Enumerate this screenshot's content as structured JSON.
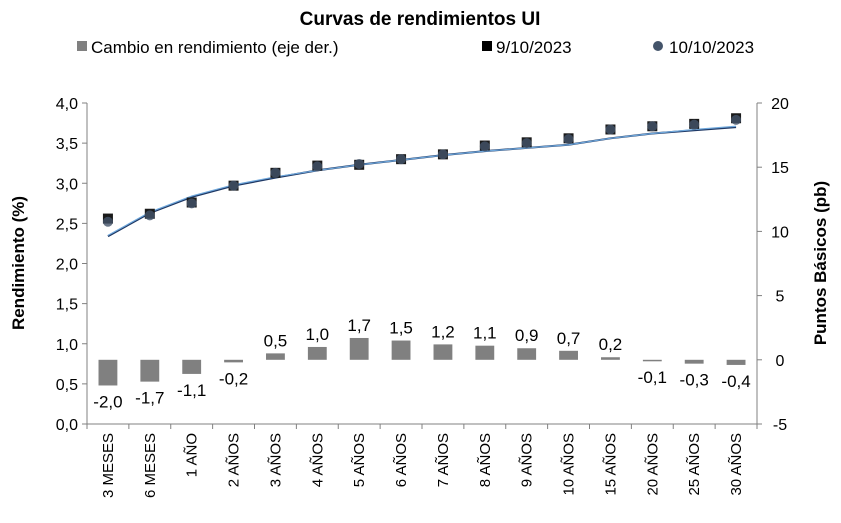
{
  "chart_data": {
    "type": "bar",
    "title": "Curvas de rendimientos UI",
    "legend": {
      "placement": "top",
      "items": [
        {
          "label": "Cambio en rendimiento (eje der.)",
          "marker": "square",
          "color": "#808080"
        },
        {
          "label": "9/10/2023",
          "marker": "square",
          "color": "#000000"
        },
        {
          "label": "10/10/2023",
          "marker": "circle",
          "color": "#44546a"
        }
      ]
    },
    "categories": [
      "3 MESES",
      "6 MESES",
      "1 AÑO",
      "2 AÑOS",
      "3 AÑOS",
      "4 AÑOS",
      "5 AÑOS",
      "6 AÑOS",
      "7 AÑOS",
      "8 AÑOS",
      "9 AÑOS",
      "10 AÑOS",
      "15 AÑOS",
      "20 AÑOS",
      "25 AÑOS",
      "30 AÑOS"
    ],
    "y_left": {
      "label": "Rendimiento (%)",
      "min": 0,
      "max": 4,
      "step": 0.5,
      "ticks": [
        "0,0",
        "0,5",
        "1,0",
        "1,5",
        "2,0",
        "2,5",
        "3,0",
        "3,5",
        "4,0"
      ]
    },
    "y_right": {
      "label": "Puntos Básicos (pb)",
      "min": -5,
      "max": 20,
      "step": 5,
      "ticks": [
        "-5",
        "0",
        "5",
        "10",
        "15",
        "20"
      ]
    },
    "grid": false,
    "series": [
      {
        "name": "Cambio en rendimiento (eje der.)",
        "type": "bar",
        "axis": "right",
        "color": "#808080",
        "values": [
          -2.0,
          -1.7,
          -1.1,
          -0.2,
          0.5,
          1.0,
          1.7,
          1.5,
          1.2,
          1.1,
          0.9,
          0.7,
          0.2,
          -0.1,
          -0.3,
          -0.4
        ],
        "data_labels": [
          "-2,0",
          "-1,7",
          "-1,1",
          "-0,2",
          "0,5",
          "1,0",
          "1,7",
          "1,5",
          "1,2",
          "1,1",
          "0,9",
          "0,7",
          "0,2",
          "-0,1",
          "-0,3",
          "-0,4"
        ]
      },
      {
        "name": "9/10/2023",
        "type": "scatter",
        "axis": "left",
        "marker": "square",
        "color": "#000000",
        "values": [
          2.56,
          2.62,
          2.76,
          2.97,
          3.13,
          3.22,
          3.23,
          3.3,
          3.36,
          3.47,
          3.51,
          3.56,
          3.67,
          3.71,
          3.74,
          3.81
        ]
      },
      {
        "name": "10/10/2023",
        "type": "scatter",
        "axis": "left",
        "marker": "circle",
        "color": "#44546a",
        "values": [
          2.52,
          2.6,
          2.75,
          2.97,
          3.13,
          3.21,
          3.24,
          3.3,
          3.36,
          3.46,
          3.5,
          3.55,
          3.67,
          3.71,
          3.73,
          3.79
        ]
      },
      {
        "name": "trend-9/10/2023",
        "type": "line",
        "axis": "left",
        "color": "#1f3864",
        "values": [
          2.34,
          2.63,
          2.83,
          2.97,
          3.07,
          3.16,
          3.23,
          3.29,
          3.35,
          3.4,
          3.44,
          3.48,
          3.56,
          3.62,
          3.66,
          3.7
        ]
      },
      {
        "name": "trend-10/10/2023",
        "type": "line",
        "axis": "left",
        "color": "#6fa8dc",
        "values": [
          2.35,
          2.64,
          2.84,
          2.98,
          3.08,
          3.16,
          3.23,
          3.29,
          3.35,
          3.4,
          3.44,
          3.48,
          3.56,
          3.62,
          3.67,
          3.71
        ]
      }
    ]
  }
}
